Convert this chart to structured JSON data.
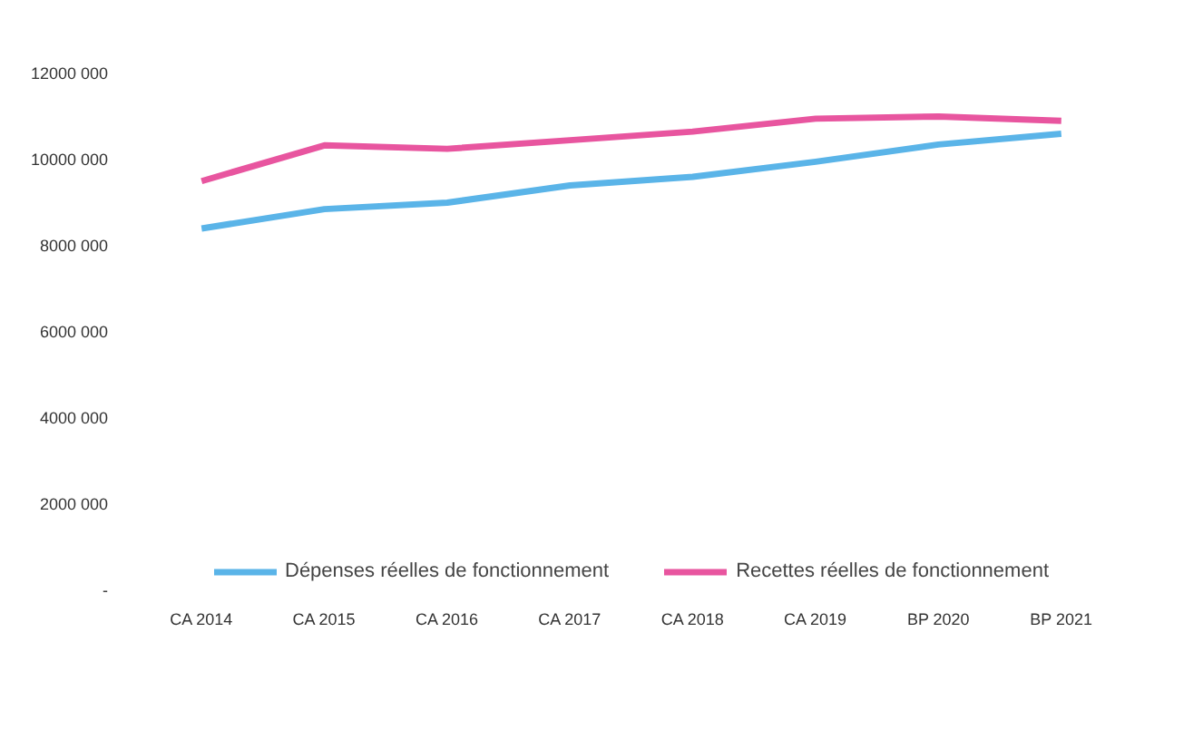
{
  "chart_data": {
    "type": "line",
    "categories": [
      "CA 2014",
      "CA 2015",
      "CA 2016",
      "CA 2017",
      "CA 2018",
      "CA 2019",
      "BP 2020",
      "BP 2021"
    ],
    "series": [
      {
        "name": "Dépenses réelles de fonctionnement",
        "color": "#5ab4e8",
        "values": [
          8400000,
          8850000,
          9000000,
          9400000,
          9600000,
          9950000,
          10350000,
          10600000
        ]
      },
      {
        "name": "Recettes réelles de fonctionnement",
        "color": "#e8559f",
        "values": [
          9500000,
          10330000,
          10250000,
          10450000,
          10650000,
          10950000,
          11000000,
          10900000
        ]
      }
    ],
    "ylim": [
      0,
      12000000
    ],
    "yticks": [
      {
        "value": 0,
        "label": "-"
      },
      {
        "value": 2000000,
        "label": "2000 000"
      },
      {
        "value": 4000000,
        "label": "4000 000"
      },
      {
        "value": 6000000,
        "label": "6000 000"
      },
      {
        "value": 8000000,
        "label": "8000 000"
      },
      {
        "value": 10000000,
        "label": "10000 000"
      },
      {
        "value": 12000000,
        "label": "12000 000"
      }
    ],
    "legend": "bottom",
    "grid": false
  }
}
